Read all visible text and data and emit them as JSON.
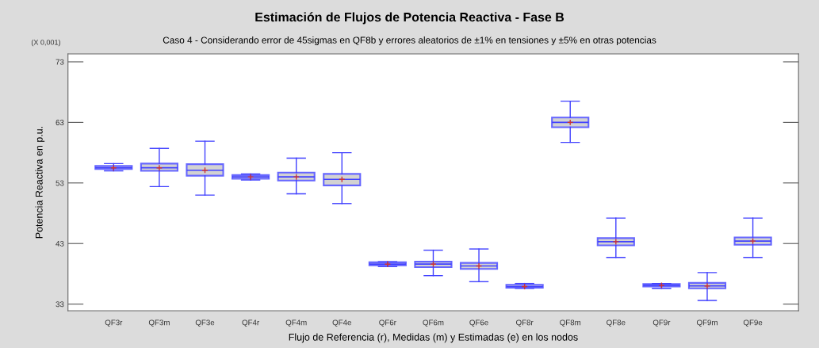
{
  "chart_data": {
    "type": "box",
    "title": "Estimación de Flujos de Potencia Reactiva - Fase B",
    "subtitle": "Caso 4 - Considerando error de 45sigmas en QF8b y errores aleatorios de ±1% en tensiones y ±5% en otras potencias",
    "xlabel": "Flujo de Referencia (r), Medidas (m) y Estimadas (e) en los nodos",
    "ylabel": "Potencia Reactiva en p.u.",
    "annotations": [
      "(X 0,001)"
    ],
    "categories": [
      "QF3r",
      "QF3m",
      "QF3e",
      "QF4r",
      "QF4m",
      "QF4e",
      "QF6r",
      "QF6m",
      "QF6e",
      "QF8r",
      "QF8m",
      "QF8e",
      "QF9r",
      "QF9m",
      "QF9e"
    ],
    "series": [
      {
        "color": "#4040ff",
        "boxes": [
          {
            "low": 55.0,
            "q1": 55.3,
            "median": 55.5,
            "q3": 55.8,
            "high": 56.2,
            "mean": 55.5
          },
          {
            "low": 52.4,
            "q1": 55.0,
            "median": 55.5,
            "q3": 56.2,
            "high": 58.7,
            "mean": 55.5
          },
          {
            "low": 51.0,
            "q1": 54.2,
            "median": 55.1,
            "q3": 56.1,
            "high": 59.9,
            "mean": 55.1
          },
          {
            "low": 53.5,
            "q1": 53.7,
            "median": 54.0,
            "q3": 54.3,
            "high": 54.5,
            "mean": 54.0
          },
          {
            "low": 51.2,
            "q1": 53.4,
            "median": 54.0,
            "q3": 54.7,
            "high": 57.1,
            "mean": 54.0
          },
          {
            "low": 49.6,
            "q1": 52.6,
            "median": 53.6,
            "q3": 54.5,
            "high": 58.0,
            "mean": 53.6
          },
          {
            "low": 39.2,
            "q1": 39.4,
            "median": 39.6,
            "q3": 39.9,
            "high": 40.0,
            "mean": 39.6
          },
          {
            "low": 37.7,
            "q1": 39.1,
            "median": 39.6,
            "q3": 40.0,
            "high": 41.9,
            "mean": 39.6
          },
          {
            "low": 36.7,
            "q1": 38.8,
            "median": 39.3,
            "q3": 39.8,
            "high": 42.1,
            "mean": 39.3
          },
          {
            "low": 35.6,
            "q1": 35.7,
            "median": 35.9,
            "q3": 36.2,
            "high": 36.4,
            "mean": 35.9
          },
          {
            "low": 59.7,
            "q1": 62.2,
            "median": 63.0,
            "q3": 63.8,
            "high": 66.5,
            "mean": 63.0
          },
          {
            "low": 40.7,
            "q1": 42.7,
            "median": 43.3,
            "q3": 43.9,
            "high": 47.2,
            "mean": 43.3
          },
          {
            "low": 35.6,
            "q1": 35.9,
            "median": 36.1,
            "q3": 36.3,
            "high": 36.4,
            "mean": 36.1
          },
          {
            "low": 33.6,
            "q1": 35.6,
            "median": 36.0,
            "q3": 36.5,
            "high": 38.2,
            "mean": 36.0
          },
          {
            "low": 40.7,
            "q1": 42.8,
            "median": 43.4,
            "q3": 44.0,
            "high": 47.2,
            "mean": 43.4
          }
        ]
      }
    ],
    "ylim": [
      31.9,
      74.3
    ],
    "yticks": [
      33,
      43,
      53,
      63,
      73
    ],
    "grid": false
  }
}
